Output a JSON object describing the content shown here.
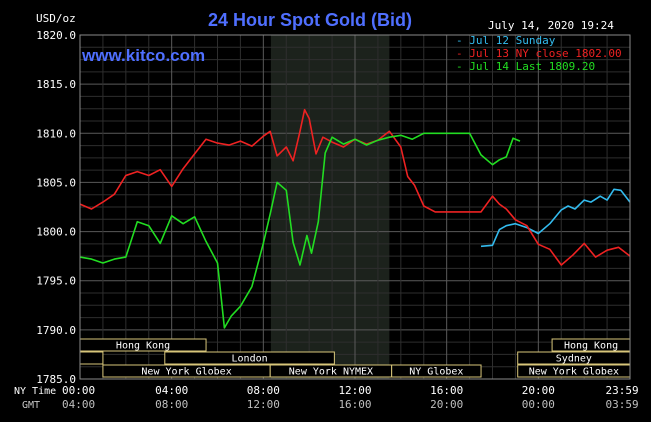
{
  "chart_data": {
    "type": "line",
    "title": "24 Hour Spot Gold (Bid)",
    "watermark": "www.kitco.com",
    "datetime": "July 14, 2020 19:24",
    "ylabel": "USD/oz",
    "ylim": [
      1785,
      1820
    ],
    "yticks": [
      "1820.0",
      "1815.0",
      "1810.0",
      "1805.0",
      "1800.0",
      "1795.0",
      "1790.0",
      "1785.0"
    ],
    "x_ny_label": "NY Time",
    "x_gmt_label": "GMT",
    "x_ny_ticks": [
      "00:00",
      "04:00",
      "08:00",
      "12:00",
      "16:00",
      "20:00",
      "23:59"
    ],
    "x_gmt_ticks": [
      "04:00",
      "08:00",
      "12:00",
      "16:00",
      "20:00",
      "00:00",
      "03:59"
    ],
    "xlim": [
      0,
      24
    ],
    "grid": true,
    "legend_placement": "top-right",
    "colors": {
      "background": "#000000",
      "grid": "#4a4a4a",
      "title": "#4f6fff",
      "jul12": "#33bbee",
      "jul13": "#ee2222",
      "jul14": "#22dd22",
      "nymex": "#1c221c"
    },
    "nymex_window": [
      8.33,
      13.5
    ],
    "sessions": [
      {
        "label": "Hong Kong",
        "start": 0,
        "end": 5.5,
        "row": 0
      },
      {
        "label": "Hong Kong",
        "start": 20.6,
        "end": 24,
        "row": 0
      },
      {
        "label": "",
        "start": 0,
        "end": 1,
        "row": 1
      },
      {
        "label": "London",
        "start": 3.7,
        "end": 11.1,
        "row": 1
      },
      {
        "label": "Sydney",
        "start": 19.1,
        "end": 24,
        "row": 1
      },
      {
        "label": "New York Globex",
        "start": 1,
        "end": 8.3,
        "row": 2
      },
      {
        "label": "New York NYMEX",
        "start": 8.3,
        "end": 13.6,
        "row": 2
      },
      {
        "label": "NY Globex",
        "start": 13.6,
        "end": 17.5,
        "row": 2
      },
      {
        "label": "New York Globex",
        "start": 19.1,
        "end": 24,
        "row": 2
      }
    ],
    "series": [
      {
        "name": "Jul 12 Sunday",
        "color": "#33bbee",
        "x": [
          17.5,
          18.0,
          18.3,
          18.6,
          19.0,
          19.5,
          20.0,
          20.5,
          21.0,
          21.3,
          21.6,
          22.0,
          22.3,
          22.7,
          23.0,
          23.3,
          23.6,
          24.0
        ],
        "y": [
          1798.5,
          1798.6,
          1800.2,
          1800.6,
          1800.8,
          1800.4,
          1799.8,
          1800.8,
          1802.2,
          1802.6,
          1802.3,
          1803.2,
          1803.0,
          1803.6,
          1803.2,
          1804.3,
          1804.2,
          1803.0
        ]
      },
      {
        "name": "Jul 13 NY close 1802.00",
        "color": "#ee2222",
        "x": [
          0.0,
          0.5,
          1.0,
          1.5,
          2.0,
          2.5,
          3.0,
          3.5,
          4.0,
          4.5,
          5.0,
          5.5,
          6.0,
          6.5,
          7.0,
          7.5,
          8.0,
          8.3,
          8.6,
          9.0,
          9.3,
          9.6,
          9.8,
          10.0,
          10.3,
          10.6,
          11.0,
          11.5,
          12.0,
          12.5,
          13.0,
          13.5,
          14.0,
          14.3,
          14.6,
          15.0,
          15.5,
          16.0,
          16.5,
          17.0,
          17.5,
          18.0,
          18.3,
          18.6,
          19.0,
          19.5,
          20.0,
          20.5,
          21.0,
          21.5,
          22.0,
          22.5,
          23.0,
          23.5,
          24.0
        ],
        "y": [
          1802.8,
          1802.3,
          1803.0,
          1803.8,
          1805.7,
          1806.1,
          1805.7,
          1806.3,
          1804.6,
          1806.4,
          1807.9,
          1809.4,
          1809.0,
          1808.8,
          1809.2,
          1808.7,
          1809.7,
          1810.2,
          1807.7,
          1808.6,
          1807.2,
          1810.2,
          1812.4,
          1811.5,
          1807.9,
          1809.6,
          1809.1,
          1808.6,
          1809.4,
          1808.9,
          1809.3,
          1810.2,
          1808.6,
          1805.6,
          1804.7,
          1802.6,
          1802.0,
          1802.0,
          1802.0,
          1802.0,
          1802.0,
          1803.6,
          1802.8,
          1802.3,
          1801.2,
          1800.6,
          1798.7,
          1798.2,
          1796.6,
          1797.6,
          1798.8,
          1797.4,
          1798.1,
          1798.4,
          1797.5
        ]
      },
      {
        "name": "Jul 14 Last 1809.20",
        "color": "#22dd22",
        "x": [
          0.0,
          0.5,
          1.0,
          1.5,
          2.0,
          2.5,
          3.0,
          3.5,
          4.0,
          4.5,
          5.0,
          5.5,
          6.0,
          6.3,
          6.6,
          7.0,
          7.5,
          8.0,
          8.3,
          8.6,
          9.0,
          9.3,
          9.6,
          9.9,
          10.1,
          10.4,
          10.7,
          11.0,
          11.5,
          12.0,
          12.5,
          13.0,
          13.5,
          14.0,
          14.5,
          15.0,
          15.5,
          16.0,
          16.5,
          17.0,
          17.5,
          18.0,
          18.3,
          18.6,
          18.9,
          19.2
        ],
        "y": [
          1797.4,
          1797.2,
          1796.8,
          1797.2,
          1797.4,
          1801.0,
          1800.6,
          1798.8,
          1801.6,
          1800.8,
          1801.5,
          1799.0,
          1796.8,
          1790.2,
          1791.4,
          1792.4,
          1794.4,
          1798.8,
          1801.8,
          1805.0,
          1804.2,
          1798.9,
          1796.6,
          1799.6,
          1797.8,
          1801.0,
          1808.0,
          1809.6,
          1808.9,
          1809.4,
          1808.8,
          1809.3,
          1809.6,
          1809.8,
          1809.4,
          1810.0,
          1810.0,
          1810.0,
          1810.0,
          1810.0,
          1807.8,
          1806.8,
          1807.3,
          1807.6,
          1809.5,
          1809.2
        ]
      }
    ]
  }
}
